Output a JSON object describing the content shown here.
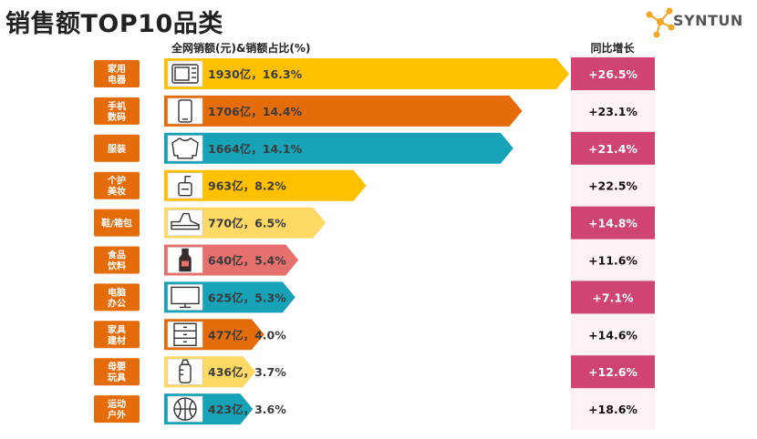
{
  "title": "销售额TOP10品类",
  "logo_text": "SYNTUN",
  "subtitle_left": "全网销额(元)&销额占比(%)",
  "subtitle_right": "同比增长",
  "colors": {
    "dark_orange": "#E46C0A",
    "gold": "#FFC000",
    "teal": "#17A2B8",
    "light_yellow": "#FFD966",
    "salmon": "#E6706E",
    "growth_dark": "#D04474",
    "growth_light": "#FFF2F5"
  },
  "chart_data": {
    "type": "bar",
    "orientation": "horizontal",
    "categories": [
      "家用\n电器",
      "手机\n数码",
      "服装",
      "个护\n美妆",
      "鞋/箱包",
      "食品\n饮料",
      "电脑\n办公",
      "家具\n建材",
      "母婴\n玩具",
      "运动\n户外"
    ],
    "icons": [
      "microwave-icon",
      "phone-icon",
      "sweater-icon",
      "pump-bottle-icon",
      "sneaker-icon",
      "bottle-icon",
      "monitor-icon",
      "cabinet-icon",
      "baby-bottle-icon",
      "basketball-icon"
    ],
    "values": [
      1930,
      1706,
      1664,
      963,
      770,
      640,
      625,
      477,
      436,
      423
    ],
    "value_labels": [
      "1930亿，16.3%",
      "1706亿，14.4%",
      "1664亿，14.1%",
      "963亿，8.2%",
      "770亿，6.5%",
      "640亿，5.4%",
      "625亿，5.3%",
      "477亿，4.0%",
      "436亿，3.7%",
      "423亿，3.6%"
    ],
    "share_percent": [
      16.3,
      14.4,
      14.1,
      8.2,
      6.5,
      5.4,
      5.3,
      4.0,
      3.7,
      3.6
    ],
    "bar_colors": [
      "#FFC000",
      "#E46C0A",
      "#17A2B8",
      "#FFC000",
      "#FFD966",
      "#E6706E",
      "#17A2B8",
      "#E46C0A",
      "#FFD966",
      "#17A2B8"
    ],
    "growth_labels": [
      "+26.5%",
      "+23.1%",
      "+21.4%",
      "+22.5%",
      "+14.8%",
      "+11.6%",
      "+7.1%",
      "+14.6%",
      "+12.6%",
      "+18.6%"
    ],
    "growth_values": [
      26.5,
      23.1,
      21.4,
      22.5,
      14.8,
      11.6,
      7.1,
      14.6,
      12.6,
      18.6
    ],
    "growth_highlight": [
      true,
      false,
      true,
      false,
      true,
      false,
      true,
      false,
      true,
      false
    ],
    "grid": false
  }
}
